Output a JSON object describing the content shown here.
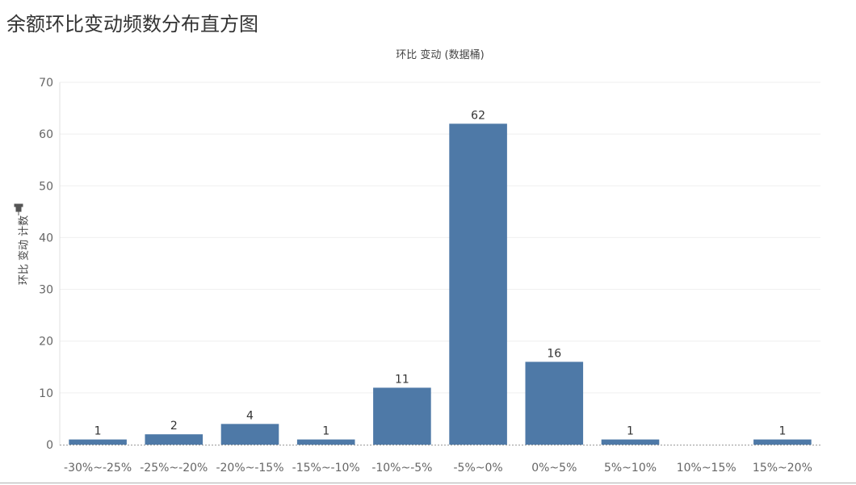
{
  "page": {
    "title": "余额环比变动频数分布直方图"
  },
  "chart_data": {
    "type": "bar",
    "title": "",
    "xlabel": "环比 变动 (数据桶)",
    "ylabel": "环比 变动 计数",
    "ylabel_icon": "pin-icon",
    "categories": [
      "-30%~-25%",
      "-25%~-20%",
      "-20%~-15%",
      "-15%~-10%",
      "-10%~-5%",
      "-5%~0%",
      "0%~5%",
      "5%~10%",
      "10%~15%",
      "15%~20%"
    ],
    "values": [
      1,
      2,
      4,
      1,
      11,
      62,
      16,
      1,
      0,
      1
    ],
    "data_labels": [
      "1",
      "2",
      "4",
      "1",
      "11",
      "62",
      "16",
      "1",
      "",
      "1"
    ],
    "ylim": [
      0,
      70
    ],
    "yticks": [
      0,
      10,
      20,
      30,
      40,
      50,
      60,
      70
    ],
    "grid": true,
    "bar_color": "#4e79a7"
  }
}
